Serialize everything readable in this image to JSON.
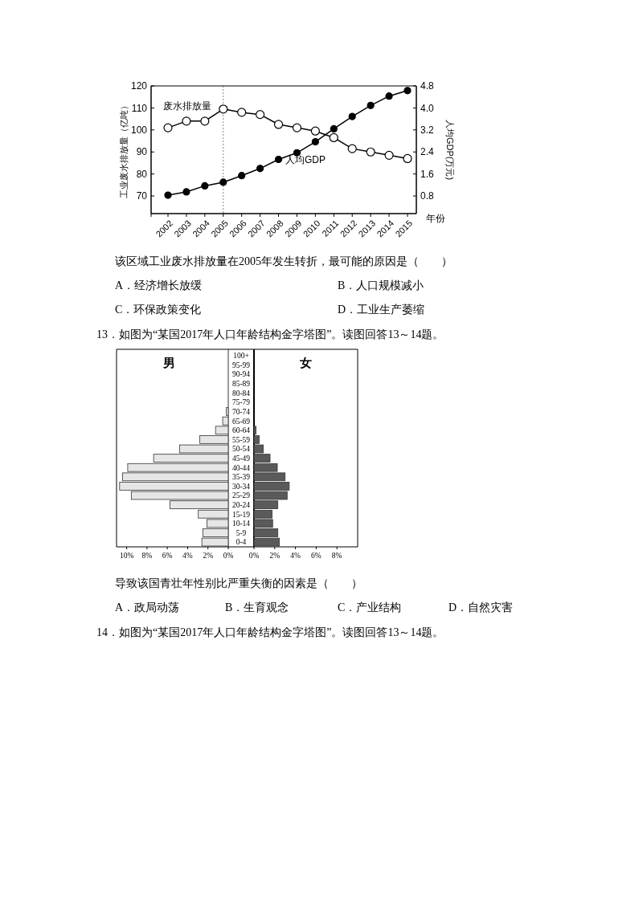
{
  "chart_data": [
    {
      "type": "line",
      "categories": [
        "2002",
        "2003",
        "2004",
        "2005",
        "2006",
        "2007",
        "2008",
        "2009",
        "2010",
        "2011",
        "2012",
        "2013",
        "2014",
        "2015"
      ],
      "xlabel": "年份",
      "ylabel": "工业废水排放量（亿吨）",
      "y2label": "人均GDP(万元)",
      "ylim": [
        62,
        120
      ],
      "yticks": [
        70,
        80,
        90,
        100,
        110,
        120
      ],
      "y2lim": [
        0.16,
        4.8
      ],
      "y2ticks": [
        0.8,
        1.6,
        2.4,
        3.2,
        {
          "value": 4,
          "label": "4.0"
        },
        4.8
      ],
      "marker": "circle",
      "series": [
        {
          "name": "废水排放量",
          "color": "#000000",
          "values": [
            101,
            104,
            104,
            109.5,
            108,
            107,
            102.5,
            101,
            99.5,
            96.5,
            91.5,
            90,
            88.5,
            87
          ]
        },
        {
          "name": "人均GDP",
          "color": "#000000",
          "axis": "y2",
          "values": [
            0.83,
            0.95,
            1.17,
            1.3,
            1.54,
            1.8,
            2.13,
            2.37,
            2.77,
            3.24,
            3.69,
            4.09,
            4.43,
            4.63
          ]
        }
      ],
      "ref_lines": [
        {
          "axis": "x",
          "value": "2005",
          "line_style": "dotted",
          "color": "#888888"
        }
      ],
      "annotations": [
        "该区域工业废水排放量在2005年发生转折，最可能的原因是（　　）",
        "A．经济增长放缓",
        "B．人口规模减小",
        "C．环保政策变化",
        "D．工业生产萎缩"
      ]
    },
    {
      "type": "bar",
      "orientation": "horizontal",
      "categories": [
        "100+",
        "95-99",
        "90-94",
        "85-89",
        "80-84",
        "75-79",
        "70-74",
        "65-69",
        "60-64",
        "55-59",
        "50-54",
        "45-49",
        "40-44",
        "35-39",
        "30-34",
        "25-29",
        "20-24",
        "15-19",
        "10-14",
        "5-9",
        "0-4"
      ],
      "xlim": [
        11,
        0
      ],
      "xticks": [
        {
          "value": 10,
          "label": "10%"
        },
        {
          "value": 8,
          "label": "8%"
        },
        {
          "value": 6,
          "label": "6%"
        },
        {
          "value": 4,
          "label": "4%"
        },
        {
          "value": 2,
          "label": "2%"
        },
        {
          "value": 0,
          "label": "0%"
        }
      ],
      "series": [
        {
          "name": "男",
          "color": "#e6e6e6",
          "values": [
            0,
            0,
            0,
            0,
            0,
            0,
            0.2,
            0.55,
            1.25,
            2.8,
            4.8,
            7.35,
            9.9,
            10.4,
            10.7,
            9.55,
            5.75,
            2.95,
            2.1,
            2.5,
            2.6
          ]
        }
      ],
      "annotations": [
        "13．如图为“某国2017年人口年龄结构金字塔图”。读图回答13～14题。"
      ]
    },
    {
      "type": "bar",
      "orientation": "horizontal",
      "xlim": [
        0,
        10
      ],
      "xticks": [
        {
          "value": 0,
          "label": "0%"
        },
        {
          "value": 2,
          "label": "2%"
        },
        {
          "value": 4,
          "label": "4%"
        },
        {
          "value": 6,
          "label": "6%"
        },
        {
          "value": 8,
          "label": "8%"
        }
      ],
      "series": [
        {
          "name": "女",
          "color": "#5a5a5a",
          "values": [
            0,
            0,
            0,
            0,
            0,
            0,
            0,
            0,
            0.2,
            0.5,
            0.9,
            1.55,
            2.25,
            3.0,
            3.4,
            3.2,
            2.3,
            1.75,
            1.8,
            2.3,
            2.45
          ]
        }
      ],
      "annotations": [
        "导致该国青壮年性别比严重失衡的因素是（　　）",
        "A．政局动荡",
        "B．生育观念",
        "C．产业结构",
        "D．自然灾害",
        "14．如图为“某国2017年人口年龄结构金字塔图”。读图回答13～14题。"
      ]
    }
  ]
}
